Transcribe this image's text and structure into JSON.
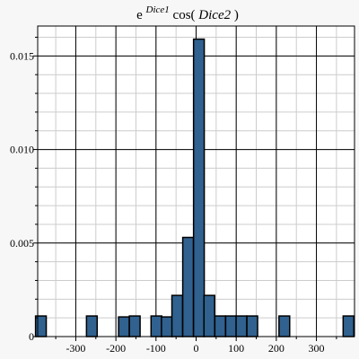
{
  "chart_data": {
    "type": "bar",
    "title": {
      "base": "e",
      "superscript": "Dice1",
      "func": " cos(",
      "arg": "Dice2",
      "close": ")"
    },
    "xlabel": "",
    "ylabel": "",
    "xlim": [
      -395,
      395
    ],
    "ylim": [
      0,
      0.0166
    ],
    "grid": true,
    "major_x_ticks": [
      -300,
      -200,
      -100,
      0,
      100,
      200,
      300
    ],
    "minor_x_step": 50,
    "major_y_ticks": [
      0,
      0.005,
      0.01,
      0.015
    ],
    "minor_y_step": 0.001,
    "x_tick_labels": [
      "-300",
      "-200",
      "-100",
      "0",
      "100",
      "200",
      "300"
    ],
    "y_tick_labels": [
      "0",
      "0.005",
      "0.010",
      "0.015"
    ],
    "bin_width": 26.7,
    "bars": [
      {
        "center": -387,
        "value": 0.0011
      },
      {
        "center": -260,
        "value": 0.0011
      },
      {
        "center": -180,
        "value": 0.00105
      },
      {
        "center": -153,
        "value": 0.0011
      },
      {
        "center": -99,
        "value": 0.0011
      },
      {
        "center": -73,
        "value": 0.00105
      },
      {
        "center": -47,
        "value": 0.0022
      },
      {
        "center": -20,
        "value": 0.0053
      },
      {
        "center": 7,
        "value": 0.0159
      },
      {
        "center": 33,
        "value": 0.0022
      },
      {
        "center": 60,
        "value": 0.0011
      },
      {
        "center": 87,
        "value": 0.0011
      },
      {
        "center": 113,
        "value": 0.0011
      },
      {
        "center": 140,
        "value": 0.0011
      },
      {
        "center": 220,
        "value": 0.0011
      },
      {
        "center": 380,
        "value": 0.0011
      }
    ],
    "colors": {
      "bar_fill": "#30618f",
      "bar_stroke": "#000000",
      "minor_grid": "#cccccc",
      "major_grid": "#000000",
      "background": "#f7f7f7"
    }
  }
}
